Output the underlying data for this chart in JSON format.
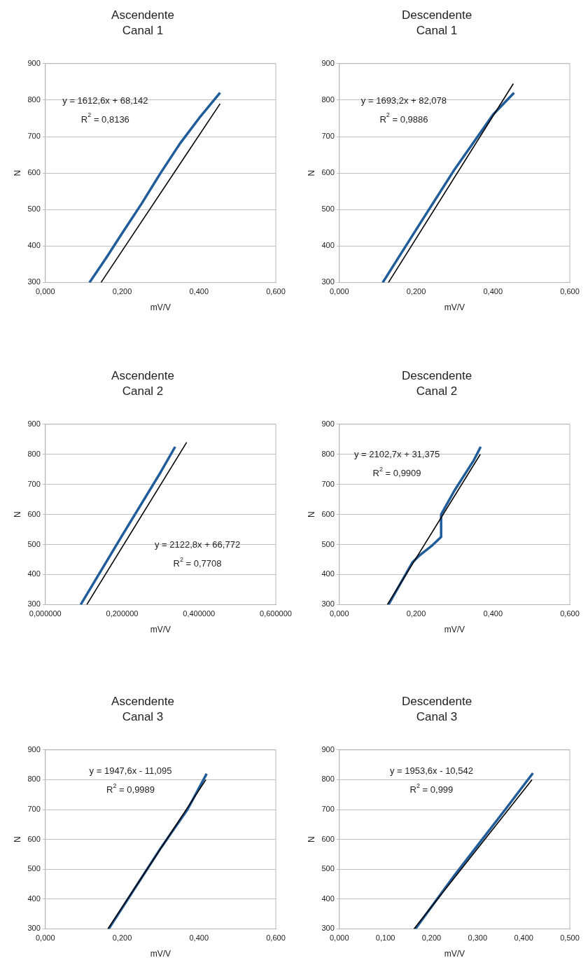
{
  "chart_data": [
    {
      "type": "line",
      "title": "Ascendente",
      "subtitle": "Canal 1",
      "xlabel": "mV/V",
      "ylabel": "N",
      "grid": "y",
      "xlim": [
        0,
        0.6
      ],
      "xticks": [
        {
          "value": 0,
          "label": "0,000"
        },
        {
          "value": 0.2,
          "label": "0,200"
        },
        {
          "value": 0.4,
          "label": "0,400"
        },
        {
          "value": 0.6,
          "label": "0,600"
        }
      ],
      "ylim": [
        300,
        900
      ],
      "yticks": [
        300,
        400,
        500,
        600,
        700,
        800,
        900
      ],
      "annotations": [
        "y = 1612,6x + 68,142",
        "R$^{2}$ = 0,8136"
      ],
      "series": [
        {
          "color": "#1f5c99",
          "x": [
            0.115,
            0.16,
            0.2,
            0.25,
            0.3,
            0.35,
            0.4,
            0.455
          ],
          "values": [
            300,
            370,
            435,
            515,
            600,
            680,
            750,
            820
          ]
        },
        {
          "color": "#000000",
          "x": [
            0.145,
            0.455
          ],
          "values": [
            300,
            790
          ]
        }
      ]
    },
    {
      "type": "line",
      "title": "Descendente",
      "subtitle": "Canal 1",
      "xlabel": "mV/V",
      "ylabel": "N",
      "grid": "y",
      "xlim": [
        0,
        0.6
      ],
      "xticks": [
        {
          "value": 0,
          "label": "0,000"
        },
        {
          "value": 0.2,
          "label": "0,200"
        },
        {
          "value": 0.4,
          "label": "0,400"
        },
        {
          "value": 0.6,
          "label": "0,600"
        }
      ],
      "ylim": [
        300,
        900
      ],
      "yticks": [
        300,
        400,
        500,
        600,
        700,
        800,
        900
      ],
      "annotations": [
        "y = 1693,2x + 82,078",
        "R$^{2}$ = 0,9886"
      ],
      "series": [
        {
          "color": "#1f5c99",
          "x": [
            0.113,
            0.2,
            0.3,
            0.4,
            0.455
          ],
          "values": [
            300,
            445,
            610,
            760,
            820
          ]
        },
        {
          "color": "#000000",
          "x": [
            0.128,
            0.453
          ],
          "values": [
            300,
            845
          ]
        }
      ]
    },
    {
      "type": "line",
      "title": "Ascendente",
      "subtitle": "Canal 2",
      "xlabel": "mV/V",
      "ylabel": "N",
      "grid": "y",
      "xlim": [
        0,
        0.6
      ],
      "xticks": [
        {
          "value": 0,
          "label": "0,000000"
        },
        {
          "value": 0.2,
          "label": "0,200000"
        },
        {
          "value": 0.4,
          "label": "0,400000"
        },
        {
          "value": 0.6,
          "label": "0,600000"
        }
      ],
      "ylim": [
        300,
        900
      ],
      "yticks": [
        300,
        400,
        500,
        600,
        700,
        800,
        900
      ],
      "annotations": [
        "y = 2122,8x + 66,772",
        "R$^{2}$ = 0,7708"
      ],
      "series": [
        {
          "color": "#1f5c99",
          "x": [
            0.092,
            0.2,
            0.3,
            0.338
          ],
          "values": [
            300,
            530,
            740,
            825
          ]
        },
        {
          "color": "#000000",
          "x": [
            0.108,
            0.368
          ],
          "values": [
            300,
            840
          ]
        }
      ]
    },
    {
      "type": "line",
      "title": "Descendente",
      "subtitle": "Canal 2",
      "xlabel": "mV/V",
      "ylabel": "N",
      "grid": "y",
      "xlim": [
        0,
        0.6
      ],
      "xticks": [
        {
          "value": 0,
          "label": "0,000"
        },
        {
          "value": 0.2,
          "label": "0,200"
        },
        {
          "value": 0.4,
          "label": "0,400"
        },
        {
          "value": 0.6,
          "label": "0,600"
        }
      ],
      "ylim": [
        300,
        900
      ],
      "yticks": [
        300,
        400,
        500,
        600,
        700,
        800,
        900
      ],
      "annotations": [
        "y = 2102,7x + 31,375",
        "R$^{2}$ = 0,9909"
      ],
      "series": [
        {
          "color": "#1f5c99",
          "x": [
            0.128,
            0.19,
            0.21,
            0.24,
            0.265,
            0.265,
            0.3,
            0.35,
            0.368
          ],
          "values": [
            300,
            440,
            465,
            495,
            525,
            600,
            680,
            780,
            825
          ]
        },
        {
          "color": "#000000",
          "x": [
            0.125,
            0.367
          ],
          "values": [
            300,
            800
          ]
        }
      ]
    },
    {
      "type": "line",
      "title": "Ascendente",
      "subtitle": "Canal 3",
      "xlabel": "mV/V",
      "ylabel": "N",
      "grid": "y",
      "xlim": [
        0,
        0.6
      ],
      "xticks": [
        {
          "value": 0,
          "label": "0,000"
        },
        {
          "value": 0.2,
          "label": "0,200"
        },
        {
          "value": 0.4,
          "label": "0,400"
        },
        {
          "value": 0.6,
          "label": "0,600"
        }
      ],
      "ylim": [
        300,
        900
      ],
      "yticks": [
        300,
        400,
        500,
        600,
        700,
        800,
        900
      ],
      "annotations": [
        "y = 1947,6x - 11,095",
        "R$^{2}$ = 0,9989"
      ],
      "series": [
        {
          "color": "#1f5c99",
          "x": [
            0.165,
            0.25,
            0.3,
            0.37,
            0.42
          ],
          "values": [
            300,
            470,
            570,
            700,
            820
          ]
        },
        {
          "color": "#000000",
          "x": [
            0.163,
            0.418
          ],
          "values": [
            300,
            800
          ]
        }
      ]
    },
    {
      "type": "line",
      "title": "Descendente",
      "subtitle": "Canal 3",
      "xlabel": "mV/V",
      "ylabel": "N",
      "grid": "y",
      "xlim": [
        0,
        0.5
      ],
      "xticks": [
        {
          "value": 0,
          "label": "0,000"
        },
        {
          "value": 0.1,
          "label": "0,100"
        },
        {
          "value": 0.2,
          "label": "0,200"
        },
        {
          "value": 0.3,
          "label": "0,300"
        },
        {
          "value": 0.4,
          "label": "0,400"
        },
        {
          "value": 0.5,
          "label": "0,500"
        }
      ],
      "ylim": [
        300,
        900
      ],
      "yticks": [
        300,
        400,
        500,
        600,
        700,
        800,
        900
      ],
      "annotations": [
        "y = 1953,6x - 10,542",
        "R$^{2}$ = 0,999"
      ],
      "series": [
        {
          "color": "#1f5c99",
          "x": [
            0.165,
            0.25,
            0.3,
            0.36,
            0.42
          ],
          "values": [
            300,
            480,
            580,
            700,
            822
          ]
        },
        {
          "color": "#000000",
          "x": [
            0.162,
            0.418
          ],
          "values": [
            300,
            800
          ]
        }
      ]
    }
  ]
}
